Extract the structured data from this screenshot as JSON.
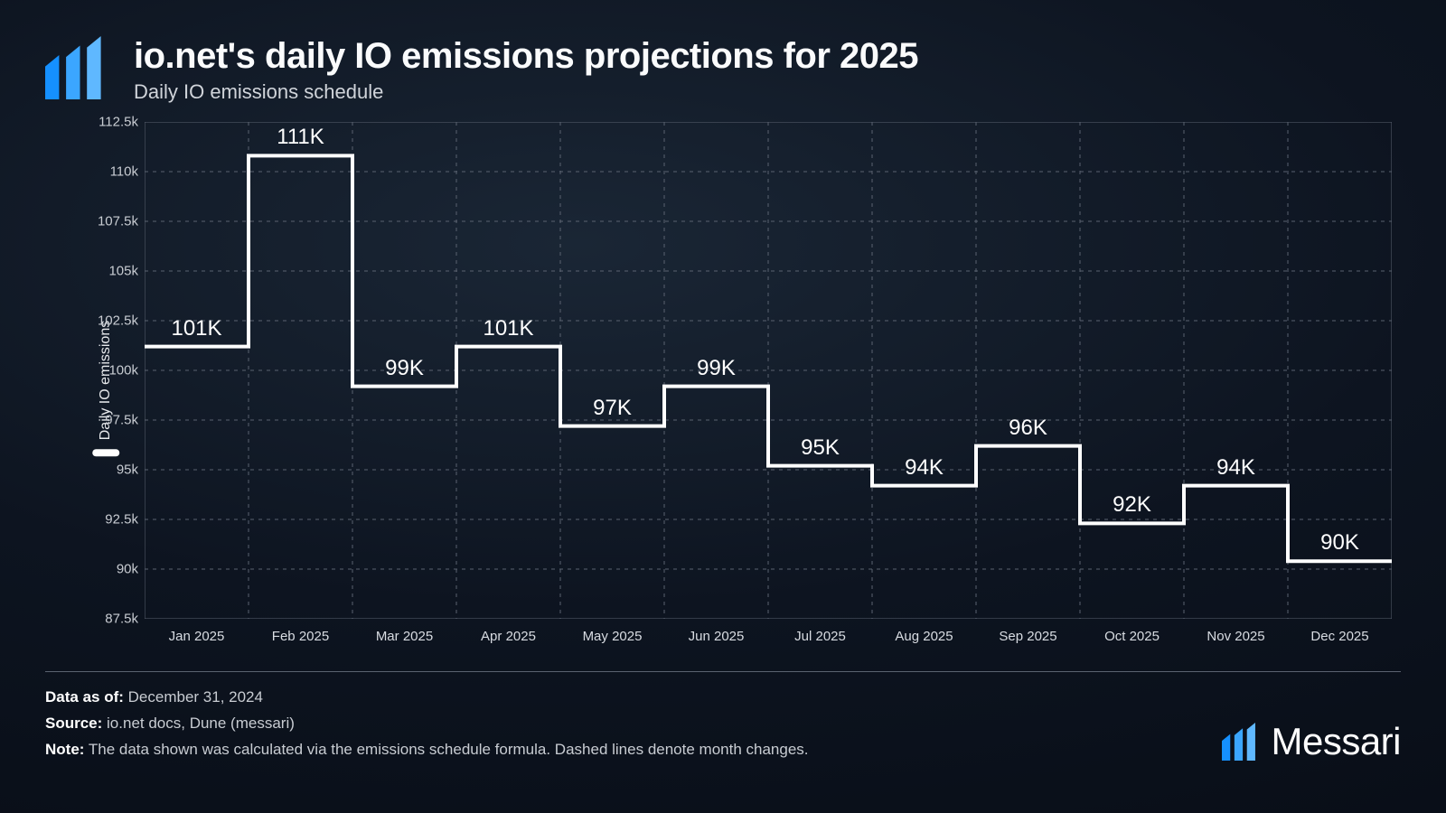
{
  "header": {
    "title": "io.net's daily IO emissions projections for 2025",
    "subtitle": "Daily IO emissions schedule"
  },
  "chart": {
    "type": "step-line",
    "y_axis_label": "Daily IO emissions",
    "y_min": 87.5,
    "y_max": 112.5,
    "y_tick_step": 2.5,
    "y_ticks": [
      {
        "v": 87.5,
        "label": "87.5k"
      },
      {
        "v": 90,
        "label": "90k"
      },
      {
        "v": 92.5,
        "label": "92.5k"
      },
      {
        "v": 95,
        "label": "95k"
      },
      {
        "v": 97.5,
        "label": "97.5k"
      },
      {
        "v": 100,
        "label": "100k"
      },
      {
        "v": 102.5,
        "label": "102.5k"
      },
      {
        "v": 105,
        "label": "105k"
      },
      {
        "v": 107.5,
        "label": "107.5k"
      },
      {
        "v": 110,
        "label": "110k"
      },
      {
        "v": 112.5,
        "label": "112.5k"
      }
    ],
    "x_ticks": [
      "Jan 2025",
      "Feb 2025",
      "Mar 2025",
      "Apr 2025",
      "May 2025",
      "Jun 2025",
      "Jul 2025",
      "Aug 2025",
      "Sep 2025",
      "Oct 2025",
      "Nov 2025",
      "Dec 2025"
    ],
    "series": [
      {
        "label": "101K",
        "value": 101.2
      },
      {
        "label": "111K",
        "value": 110.8
      },
      {
        "label": "99K",
        "value": 99.2
      },
      {
        "label": "101K",
        "value": 101.2
      },
      {
        "label": "97K",
        "value": 97.2
      },
      {
        "label": "99K",
        "value": 99.2
      },
      {
        "label": "95K",
        "value": 95.2
      },
      {
        "label": "94K",
        "value": 94.2
      },
      {
        "label": "96K",
        "value": 96.2
      },
      {
        "label": "92K",
        "value": 92.3
      },
      {
        "label": "94K",
        "value": 94.2
      },
      {
        "label": "90K",
        "value": 90.4
      }
    ],
    "line_color": "#ffffff",
    "line_width": 4,
    "grid_color": "#5a6270",
    "grid_dash": "4 5",
    "axis_border_color": "#5a6270",
    "data_label_fontsize": 24,
    "tick_label_fontsize": 15
  },
  "footer": {
    "data_as_of_label": "Data as of:",
    "data_as_of": "December 31, 2024",
    "source_label": "Source:",
    "source": "io.net docs, Dune (messari)",
    "note_label": "Note:",
    "note": "The data shown was calculated via the emissions schedule formula. Dashed lines denote month changes."
  },
  "brand": {
    "wordmark": "Messari",
    "logo_colors": [
      "#1590ff",
      "#3ba6ff",
      "#5fb8ff"
    ]
  }
}
